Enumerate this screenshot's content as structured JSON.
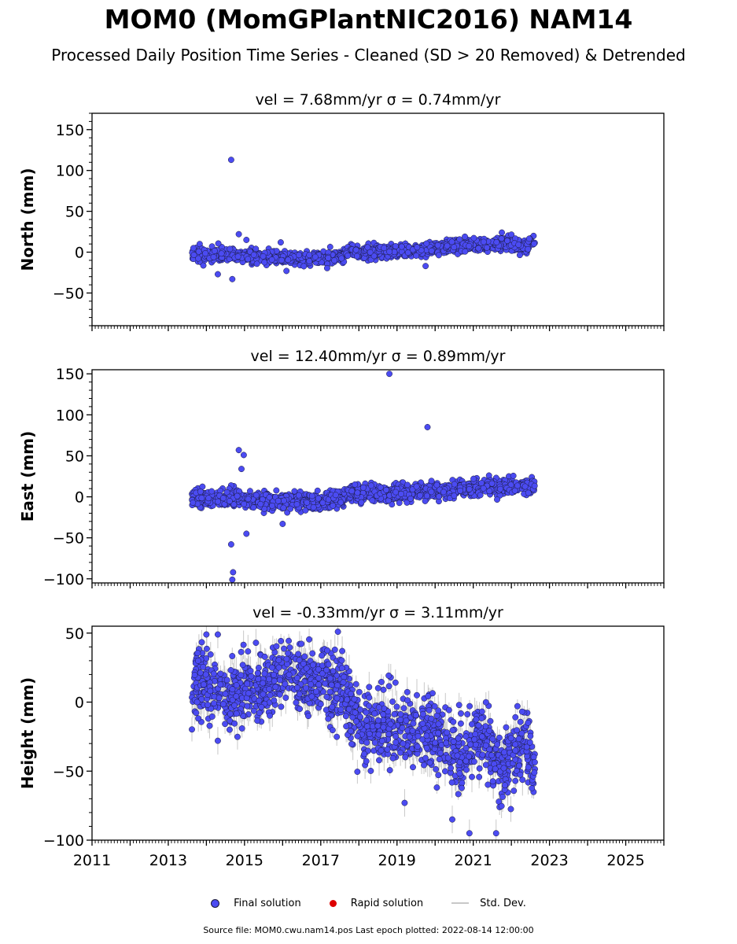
{
  "title": "MOM0 (MomGPlantNIC2016) NAM14",
  "subtitle": "Processed Daily Position Time Series - Cleaned (SD > 20 Removed) & Detrended",
  "colors": {
    "final": "#4b4bf2",
    "final_edge": "#1a1a3a",
    "rapid": "#dd0000",
    "stddev": "#c8c8c8"
  },
  "legend": {
    "final": "Final solution",
    "rapid": "Rapid solution",
    "stddev": "Std. Dev."
  },
  "footer": "Source file: MOM0.cwu.nam14.pos  Last epoch plotted: 2022-08-14 12:00:00",
  "chart_data": [
    {
      "type": "scatter",
      "title": "vel = 7.68mm/yr   σ = 0.74mm/yr",
      "ylabel": "North (mm)",
      "xlim": [
        2011.0,
        2026.0
      ],
      "ylim": [
        -90,
        170
      ],
      "yticks": [
        -50,
        0,
        50,
        100,
        150
      ],
      "ytick_labels": [
        "−50",
        "0",
        "50",
        "100",
        "150"
      ],
      "xticks": [
        2011,
        2013,
        2015,
        2017,
        2019,
        2021,
        2023,
        2025
      ],
      "xtick_labels": [],
      "trend": [
        [
          2013.6,
          -3
        ],
        [
          2014.6,
          -3
        ],
        [
          2015.0,
          -5
        ],
        [
          2016.0,
          -7
        ],
        [
          2017.0,
          -7
        ],
        [
          2017.6,
          -7
        ],
        [
          2017.7,
          2
        ],
        [
          2018.5,
          0
        ],
        [
          2019.5,
          2
        ],
        [
          2020.5,
          8
        ],
        [
          2021.5,
          9
        ],
        [
          2022.0,
          12
        ],
        [
          2022.3,
          6
        ],
        [
          2022.62,
          11
        ]
      ],
      "spread": 4,
      "sd": 4,
      "outliers": [
        [
          2014.65,
          113
        ],
        [
          2014.68,
          -33
        ],
        [
          2014.3,
          -27
        ],
        [
          2014.85,
          22
        ],
        [
          2015.05,
          15
        ],
        [
          2015.95,
          12
        ],
        [
          2016.1,
          -23
        ],
        [
          2019.75,
          -17
        ],
        [
          2021.75,
          24
        ]
      ]
    },
    {
      "type": "scatter",
      "title": "vel = 12.40mm/yr   σ = 0.89mm/yr",
      "ylabel": "East (mm)",
      "xlim": [
        2011.0,
        2026.0
      ],
      "ylim": [
        -105,
        155
      ],
      "yticks": [
        -100,
        -50,
        0,
        50,
        100,
        150
      ],
      "ytick_labels": [
        "−100",
        "−50",
        "0",
        "50",
        "100",
        "150"
      ],
      "xticks": [
        2011,
        2013,
        2015,
        2017,
        2019,
        2021,
        2023,
        2025
      ],
      "xtick_labels": [],
      "trend": [
        [
          2013.6,
          0
        ],
        [
          2014.2,
          -5
        ],
        [
          2014.6,
          0
        ],
        [
          2015.0,
          -5
        ],
        [
          2016.0,
          -6
        ],
        [
          2017.0,
          -5
        ],
        [
          2017.6,
          -2
        ],
        [
          2017.7,
          5
        ],
        [
          2018.5,
          3
        ],
        [
          2019.5,
          6
        ],
        [
          2020.5,
          9
        ],
        [
          2021.5,
          12
        ],
        [
          2022.62,
          13
        ]
      ],
      "spread": 5,
      "sd": 4,
      "outliers": [
        [
          2018.8,
          150
        ],
        [
          2019.8,
          85
        ],
        [
          2014.85,
          57
        ],
        [
          2014.98,
          51
        ],
        [
          2014.92,
          34
        ],
        [
          2014.65,
          -58
        ],
        [
          2014.7,
          -92
        ],
        [
          2014.68,
          -101
        ],
        [
          2015.05,
          -45
        ],
        [
          2016.0,
          -33
        ]
      ]
    },
    {
      "type": "scatter",
      "title": "vel = -0.33mm/yr   σ = 3.11mm/yr",
      "ylabel": "Height (mm)",
      "xlim": [
        2011.0,
        2026.0
      ],
      "ylim": [
        -100,
        55
      ],
      "yticks": [
        -100,
        -50,
        0,
        50
      ],
      "ytick_labels": [
        "−100",
        "−50",
        "0",
        "50"
      ],
      "xticks": [
        2011,
        2013,
        2015,
        2017,
        2019,
        2021,
        2023,
        2025
      ],
      "xtick_labels": [
        "2011",
        "2013",
        "2015",
        "2017",
        "2019",
        "2021",
        "2023",
        "2025"
      ],
      "trend": [
        [
          2013.6,
          10
        ],
        [
          2014.0,
          15
        ],
        [
          2014.6,
          5
        ],
        [
          2015.0,
          8
        ],
        [
          2015.6,
          15
        ],
        [
          2016.2,
          25
        ],
        [
          2016.7,
          15
        ],
        [
          2017.2,
          12
        ],
        [
          2017.6,
          10
        ],
        [
          2018.0,
          -20
        ],
        [
          2019.0,
          -18
        ],
        [
          2019.7,
          -20
        ],
        [
          2020.2,
          -30
        ],
        [
          2020.8,
          -40
        ],
        [
          2021.2,
          -25
        ],
        [
          2021.8,
          -50
        ],
        [
          2022.3,
          -30
        ],
        [
          2022.62,
          -45
        ]
      ],
      "spread": 12,
      "sd": 10,
      "outliers": [
        [
          2014.0,
          49
        ],
        [
          2014.3,
          49
        ],
        [
          2015.3,
          43
        ],
        [
          2017.45,
          51
        ],
        [
          2020.45,
          -85
        ],
        [
          2020.9,
          -95
        ],
        [
          2021.6,
          -95
        ],
        [
          2019.2,
          -73
        ],
        [
          2014.3,
          -28
        ]
      ]
    }
  ]
}
